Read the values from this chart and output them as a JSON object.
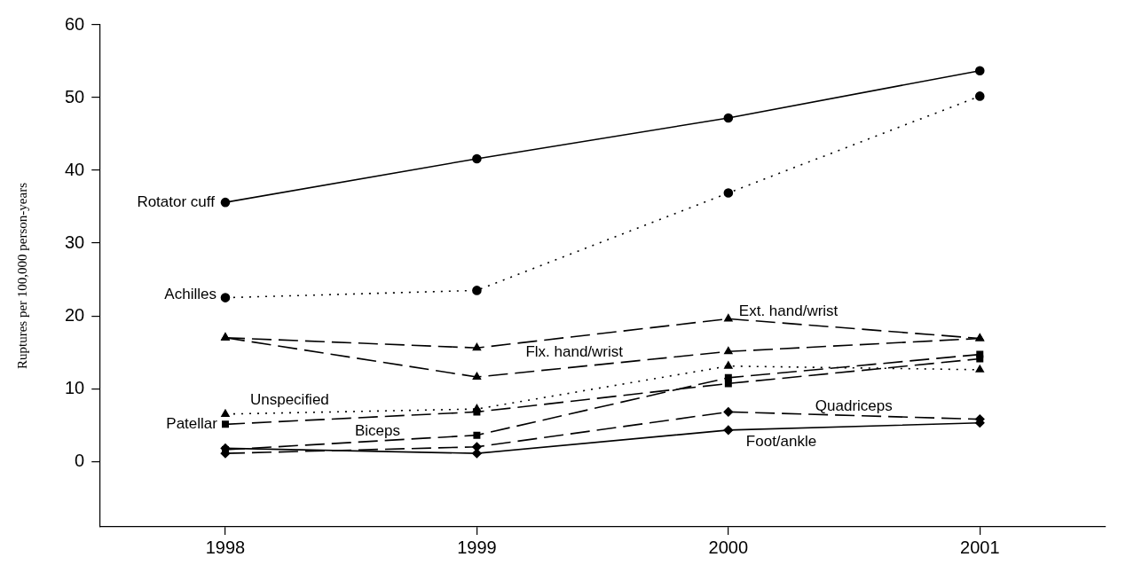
{
  "chart_data": {
    "type": "line",
    "ylabel": "Ruptures per 100,000 person-years",
    "x": [
      1998,
      1999,
      2000,
      2001
    ],
    "xlim": [
      1997.5,
      2001.5
    ],
    "xticks": [
      1998,
      1999,
      2000,
      2001
    ],
    "ylim": [
      -9,
      60
    ],
    "yticks": [
      0,
      10,
      20,
      30,
      40,
      50,
      60
    ],
    "grid": false,
    "legend": false,
    "series": [
      {
        "name": "Rotator cuff",
        "color": "#000000",
        "values": [
          35.6,
          41.6,
          47.2,
          53.7
        ],
        "marker": "circle",
        "line_style": "solid"
      },
      {
        "name": "Achilles",
        "color": "#000000",
        "values": [
          22.5,
          23.5,
          36.9,
          50.2
        ],
        "marker": "circle",
        "line_style": "dotted"
      },
      {
        "name": "Ext. hand/wrist",
        "color": "#000000",
        "values": [
          17.0,
          15.6,
          19.6,
          16.9
        ],
        "marker": "triangle",
        "line_style": "dashed"
      },
      {
        "name": "Flx. hand/wrist",
        "color": "#000000",
        "values": [
          17.0,
          11.6,
          15.1,
          16.9
        ],
        "marker": "triangle",
        "line_style": "dashed"
      },
      {
        "name": "Unspecified",
        "color": "#000000",
        "values": [
          6.5,
          7.2,
          13.1,
          12.6
        ],
        "marker": "triangle",
        "line_style": "dotted"
      },
      {
        "name": "Patellar",
        "color": "#000000",
        "values": [
          5.1,
          6.8,
          10.7,
          14.1
        ],
        "marker": "square",
        "line_style": "dashed"
      },
      {
        "name": "Biceps",
        "color": "#000000",
        "values": [
          1.6,
          3.6,
          11.5,
          14.7
        ],
        "marker": "square",
        "line_style": "dashed"
      },
      {
        "name": "Quadriceps",
        "color": "#000000",
        "values": [
          1.1,
          2.0,
          6.8,
          5.8
        ],
        "marker": "diamond",
        "line_style": "dashed"
      },
      {
        "name": "Foot/ankle",
        "color": "#000000",
        "values": [
          1.8,
          1.1,
          4.3,
          5.3
        ],
        "marker": "diamond",
        "line_style": "solid"
      }
    ]
  }
}
